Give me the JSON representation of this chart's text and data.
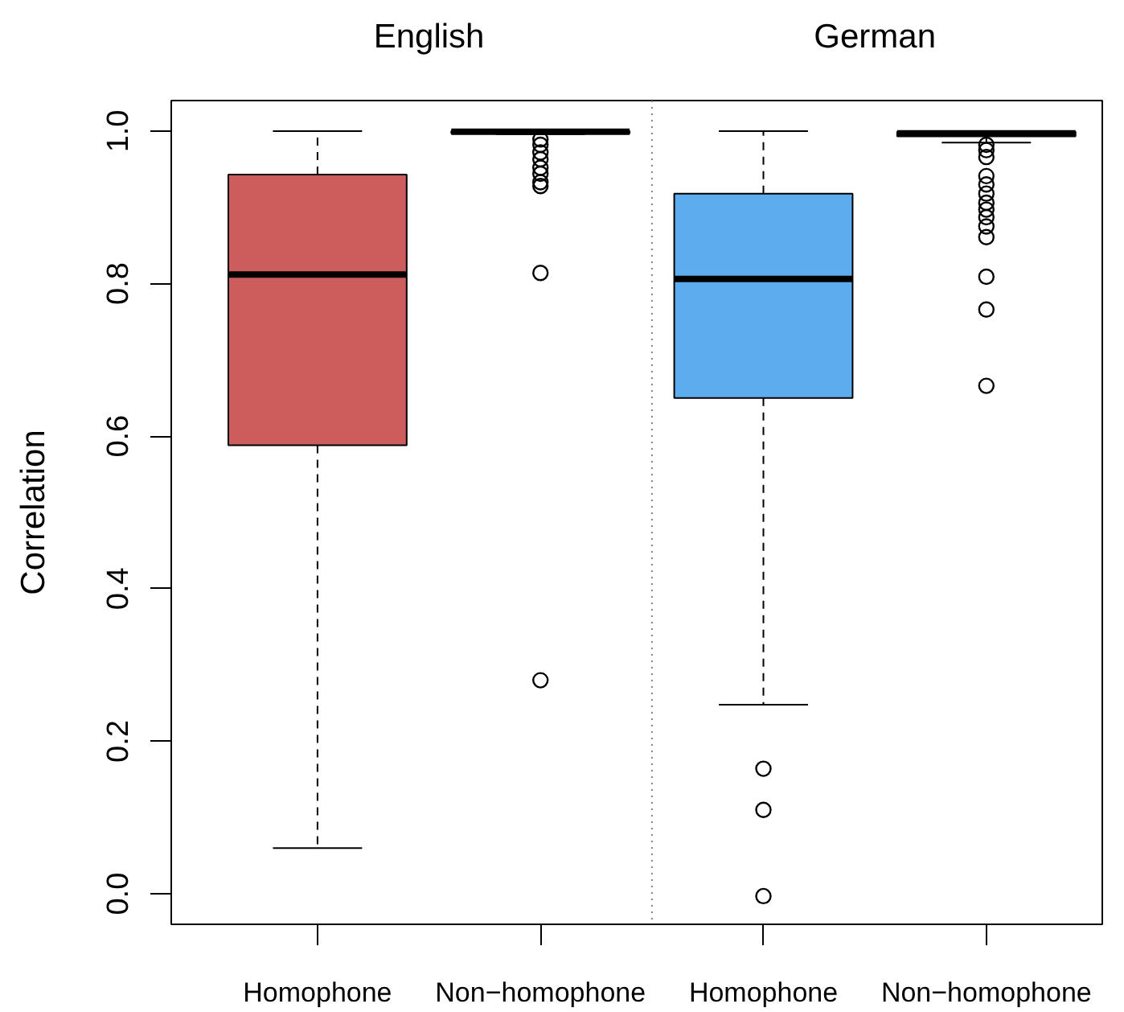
{
  "chart_data": {
    "type": "box",
    "categories": [
      "Homophone",
      "Non−homophone",
      "Homophone",
      "Non−homophone"
    ],
    "colors": [
      "#cd5c5c",
      "#ffffff",
      "#5cacee",
      "#ffffff"
    ],
    "boxes": [
      {
        "low": 0.06,
        "q1": 0.588,
        "median": 0.812,
        "q3": 0.943,
        "high": 1.0
      },
      {
        "low": 0.996,
        "q1": 0.997,
        "median": 0.999,
        "q3": 1.0,
        "high": 1.0,
        "outliers": [
          0.989,
          0.982,
          0.972,
          0.963,
          0.952,
          0.944,
          0.933,
          0.928,
          0.814,
          0.28
        ]
      },
      {
        "low": 0.248,
        "q1": 0.65,
        "median": 0.806,
        "q3": 0.918,
        "high": 1.0,
        "outliers": [
          0.164,
          0.11,
          -0.003
        ]
      },
      {
        "low": 0.985,
        "q1": 0.993,
        "median": 0.997,
        "q3": 0.999,
        "high": 1.0,
        "outliers": [
          0.982,
          0.975,
          0.966,
          0.941,
          0.93,
          0.918,
          0.906,
          0.897,
          0.887,
          0.875,
          0.861,
          0.809,
          0.766,
          0.666
        ]
      }
    ],
    "ylabel": "Correlation",
    "ylim": [
      -0.04,
      1.04
    ],
    "yticks": [
      {
        "value": 0,
        "label": "0.0"
      },
      0.2,
      0.4,
      0.6,
      0.8,
      {
        "value": 1,
        "label": "1.0"
      }
    ],
    "annotations": [
      "English",
      "German"
    ]
  }
}
